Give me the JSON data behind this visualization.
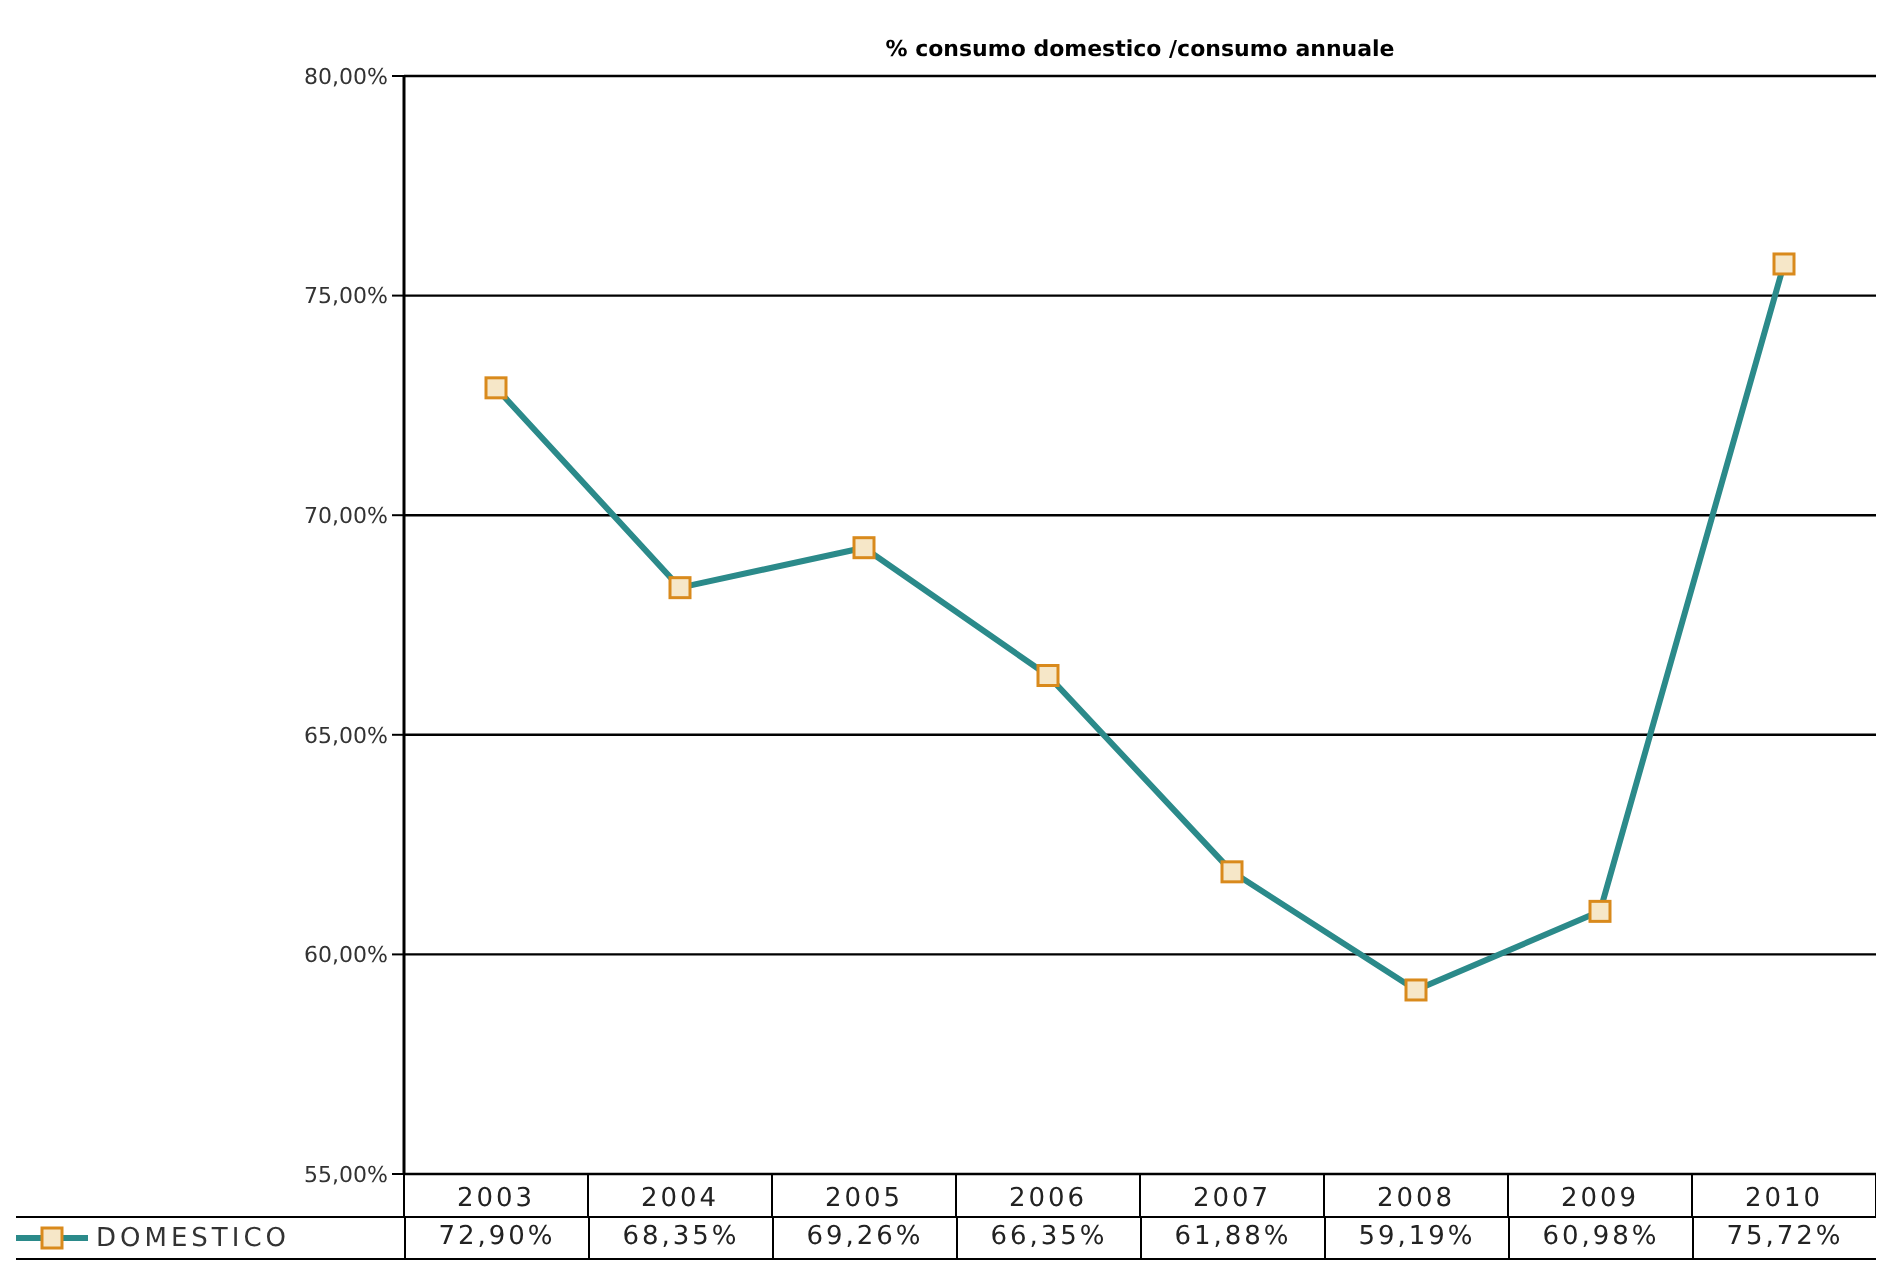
{
  "chart_data": {
    "type": "line",
    "title": "% consumo domestico /consumo annuale",
    "categories": [
      "2003",
      "2004",
      "2005",
      "2006",
      "2007",
      "2008",
      "2009",
      "2010"
    ],
    "series": [
      {
        "name": "DOMESTICO",
        "color": "#2b8a8a",
        "values": [
          72.9,
          68.35,
          69.26,
          66.35,
          61.88,
          59.19,
          60.98,
          75.72
        ],
        "value_labels": [
          "72,90%",
          "68,35%",
          "69,26%",
          "66,35%",
          "61,88%",
          "59,19%",
          "60,98%",
          "75,72%"
        ]
      }
    ],
    "ylim": [
      55,
      80
    ],
    "yticks": [
      {
        "value": 55,
        "label": "55,00%"
      },
      {
        "value": 60,
        "label": "60,00%"
      },
      {
        "value": 65,
        "label": "65,00%"
      },
      {
        "value": 70,
        "label": "70,00%"
      },
      {
        "value": 75,
        "label": "75,00%"
      },
      {
        "value": 80,
        "label": "80,00%"
      }
    ],
    "grid": "y",
    "legend": "bottom",
    "marker": "square",
    "line_style": "solid"
  }
}
